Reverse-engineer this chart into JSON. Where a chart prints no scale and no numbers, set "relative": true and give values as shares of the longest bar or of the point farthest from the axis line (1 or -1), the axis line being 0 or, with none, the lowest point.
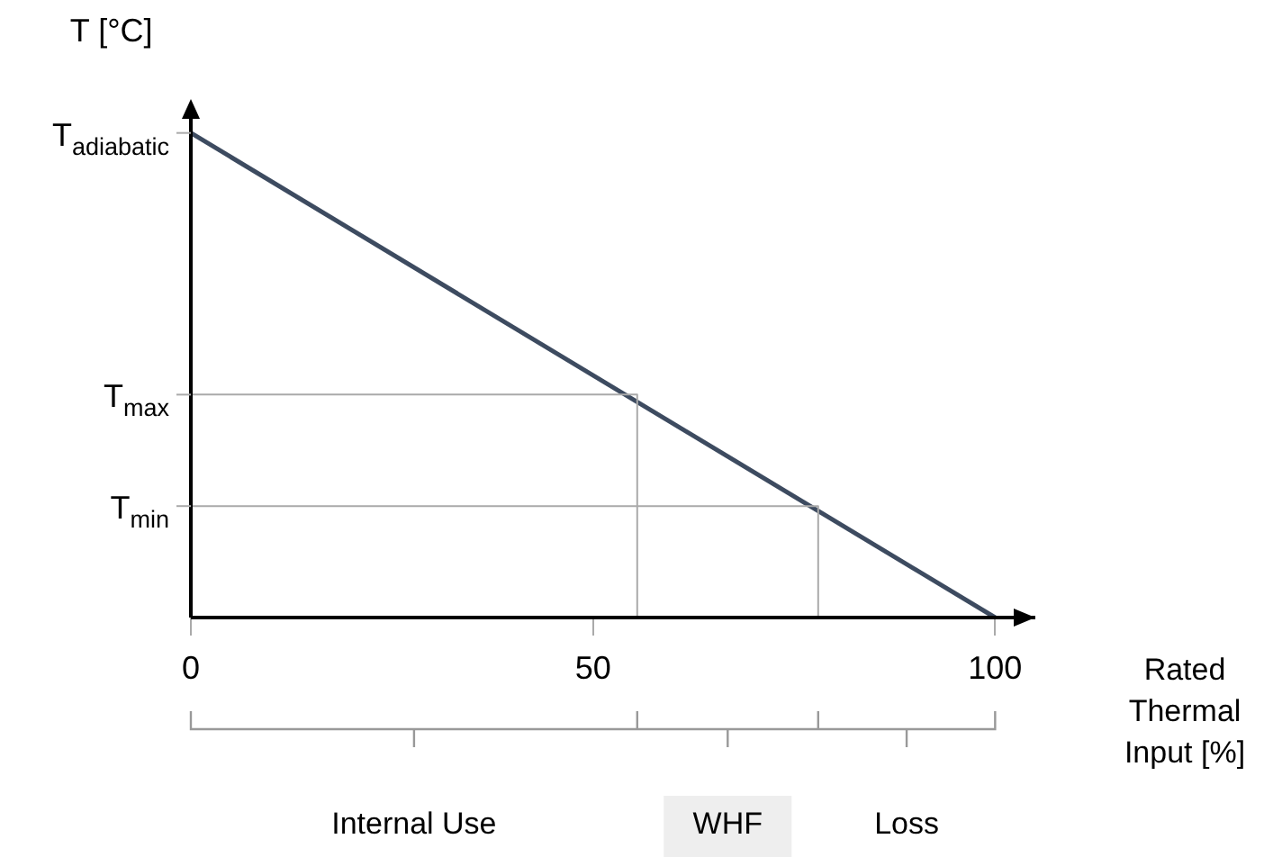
{
  "chart_data": {
    "type": "line",
    "relative": true,
    "ylabel": "T [°C]",
    "xlabel": "Rated Thermal Input [%]",
    "xlim": [
      0,
      105
    ],
    "xticks": [
      0,
      50,
      100
    ],
    "series": [
      {
        "x": [
          0,
          100
        ],
        "values": [
          1,
          0
        ],
        "color": "#3d4b60"
      },
      {
        "x": [
          0,
          55.5,
          55.5
        ],
        "values": [
          0.46,
          0.46,
          0
        ],
        "color": "#aaaaaa"
      },
      {
        "x": [
          0,
          78,
          78
        ],
        "values": [
          0.23,
          0.23,
          0
        ],
        "color": "#aaaaaa"
      }
    ],
    "annotations": [
      "T$_{adiabatic}$",
      "T$_{max}$",
      "T$_{min}$",
      "Internal Use",
      "WHF",
      "Loss"
    ],
    "grid": false,
    "legend": false
  }
}
